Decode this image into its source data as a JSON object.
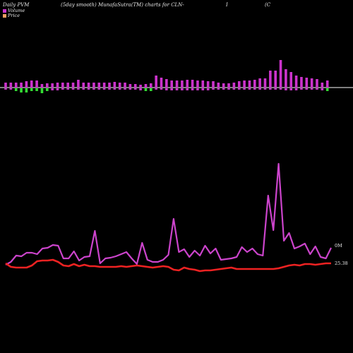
{
  "header": {
    "left": "Daily PVM",
    "mid": "(5day smooth) MunafaSutra(TM) charts for CLN-",
    "sep": "I",
    "right": "(C"
  },
  "legend": [
    {
      "label": "Volume",
      "color": "#cc33cc"
    },
    {
      "label": "Price",
      "color": "#f0a060"
    }
  ],
  "colors": {
    "volume_up": "#cc33cc",
    "volume_down": "#33dd33",
    "volume_line": "#cc44cc",
    "price_line": "#ee2222",
    "baseline": "#ffffff"
  },
  "chart_data": [
    {
      "type": "bar",
      "title": "",
      "series": [
        {
          "name": "Volume",
          "values": [
            7,
            7,
            7,
            7,
            9,
            10,
            10,
            5,
            6,
            6,
            7,
            7,
            7,
            7,
            11,
            7,
            7,
            7,
            7,
            7,
            7,
            8,
            7,
            7,
            5,
            5,
            4,
            5,
            6,
            17,
            14,
            12,
            10,
            10,
            10,
            11,
            11,
            10,
            10,
            9,
            9,
            7,
            6,
            6,
            7,
            9,
            10,
            10,
            11,
            13,
            13,
            24,
            24,
            39,
            26,
            22,
            17,
            15,
            14,
            13,
            12,
            7,
            10
          ]
        },
        {
          "name": "Price",
          "values": [
            -2,
            -2,
            -4,
            -6,
            -6,
            -4,
            -4,
            -7,
            -4,
            -3,
            -3,
            -2,
            -2,
            -2,
            -2,
            -2,
            -2,
            -2,
            -2,
            -2,
            -2,
            -2,
            -2,
            -2,
            -2,
            -2,
            -3,
            -4,
            -4,
            -2,
            -2,
            -3,
            -3,
            -3,
            -3,
            -3,
            -3,
            -3,
            -3,
            -3,
            -2,
            -2,
            -2,
            -2,
            -2,
            -2,
            -2,
            -2,
            -2,
            -2,
            -2,
            -2,
            -2,
            -2,
            -3,
            -3,
            -3,
            -2,
            -2,
            -2,
            -2,
            -3,
            -4
          ]
        }
      ]
    },
    {
      "type": "line",
      "title": "",
      "series": [
        {
          "name": "Volume",
          "end_label": "0M",
          "values": [
            375,
            371,
            362,
            363,
            358,
            358,
            360,
            352,
            351,
            347,
            348,
            366,
            366,
            356,
            369,
            364,
            363,
            327,
            373,
            366,
            365,
            363,
            360,
            357,
            366,
            374,
            344,
            368,
            371,
            371,
            368,
            361,
            310,
            357,
            353,
            364,
            355,
            362,
            348,
            359,
            352,
            368,
            367,
            366,
            364,
            350,
            357,
            352,
            360,
            362,
            277,
            326,
            232,
            341,
            330,
            352,
            349,
            345,
            360,
            349,
            364,
            366,
            351
          ]
        },
        {
          "name": "Price",
          "end_label": "25.38",
          "values": [
            373,
            378,
            379,
            379,
            379,
            376,
            370,
            369,
            369,
            368,
            371,
            376,
            377,
            374,
            377,
            375,
            377,
            377,
            378,
            378,
            378,
            378,
            377,
            378,
            377,
            376,
            377,
            378,
            379,
            378,
            377,
            378,
            382,
            383,
            379,
            381,
            382,
            384,
            383,
            383,
            382,
            381,
            380,
            379,
            381,
            381,
            381,
            381,
            381,
            381,
            381,
            381,
            380,
            378,
            376,
            375,
            376,
            374,
            374,
            375,
            374,
            373,
            373
          ]
        }
      ]
    }
  ]
}
